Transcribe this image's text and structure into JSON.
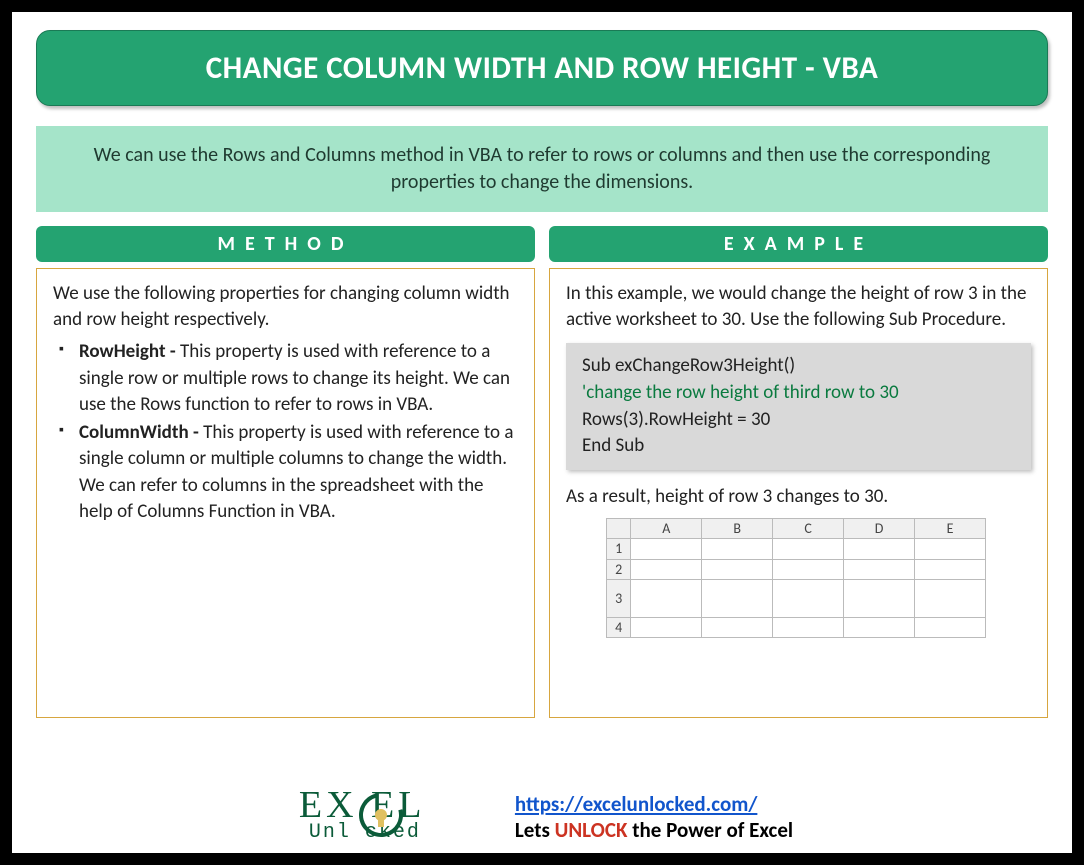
{
  "colors": {
    "banner_bg": "#24a371",
    "banner_border": "#1a7a55",
    "intro_bg": "#a5e4c9",
    "box_border": "#d7a63f",
    "code_bg": "#d9d9d9",
    "comment_color": "#0a7a3f",
    "link_color": "#1155cc",
    "unlock_color": "#cc3322",
    "logo_color": "#0b5b39"
  },
  "title": "CHANGE COLUMN WIDTH AND ROW HEIGHT - VBA",
  "intro": "We can use the Rows and Columns method in VBA to refer to rows or columns and then use the corresponding properties to change the dimensions.",
  "method": {
    "header": "METHOD",
    "intro": "We use the following properties for changing column width and row height respectively.",
    "props": [
      {
        "name": "RowHeight - ",
        "desc": "This property is used with reference to a single row or multiple rows to change its height. We can use the Rows function to refer to rows in VBA."
      },
      {
        "name": "ColumnWidth - ",
        "desc": "This property is used with reference to a single column or multiple columns to change the width. We can refer to columns in the spreadsheet with the help of Columns Function in VBA."
      }
    ]
  },
  "example": {
    "header": "EXAMPLE",
    "intro": "In this example, we would change the height of row 3 in the active worksheet to 30. Use the following Sub Procedure.",
    "code": {
      "line1": "Sub exChangeRow3Height()",
      "comment": "'change the row height of third row to 30",
      "line2": "Rows(3).RowHeight = 30",
      "line3": "End Sub"
    },
    "result": "As a result, height of row 3 changes to 30.",
    "sheet": {
      "cols": [
        "A",
        "B",
        "C",
        "D",
        "E"
      ],
      "rows": [
        "1",
        "2",
        "3",
        "4"
      ],
      "tall_row_index": 2
    }
  },
  "footer": {
    "logo_top": "EX  EL",
    "logo_bottom": "Unl  cked",
    "url": "https://excelunlocked.com/",
    "tag_pre": "Lets ",
    "tag_word": "UNLOCK",
    "tag_post": " the Power of Excel"
  }
}
